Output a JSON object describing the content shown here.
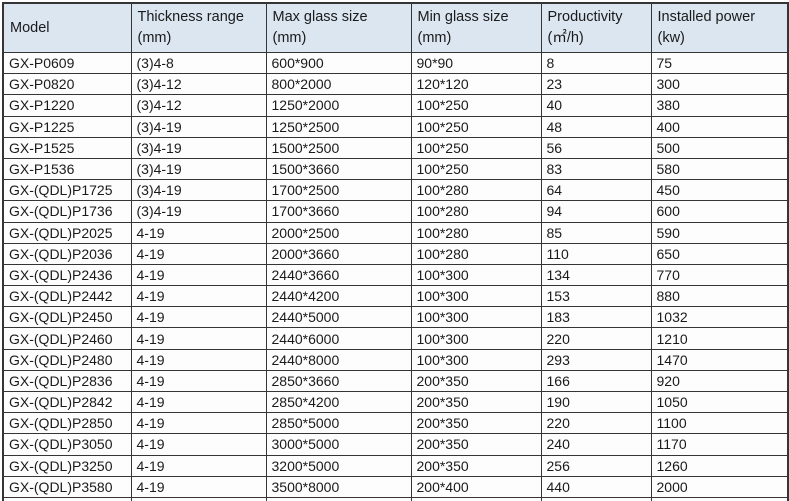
{
  "colors": {
    "header_bg": "#dce6f1",
    "row_bg": "#fdfdfe",
    "border": "#353535",
    "text": "#1a1a1a"
  },
  "table": {
    "headers": [
      {
        "line1": "Model",
        "line2": ""
      },
      {
        "line1": "Thickness range",
        "line2": "(mm)"
      },
      {
        "line1": "Max glass size",
        "line2": "(mm)"
      },
      {
        "line1": "Min glass size",
        "line2": "(mm)"
      },
      {
        "line1": "Productivity",
        "line2": "(㎡/h)"
      },
      {
        "line1": "Installed power",
        "line2": "(kw)"
      }
    ],
    "column_names": [
      "model",
      "thickness-range",
      "max-glass-size",
      "min-glass-size",
      "productivity",
      "installed-power"
    ],
    "rows": [
      [
        "GX-P0609",
        "(3)4-8",
        "600*900",
        "90*90",
        "8",
        "75"
      ],
      [
        "GX-P0820",
        "(3)4-12",
        "800*2000",
        "120*120",
        "23",
        "300"
      ],
      [
        "GX-P1220",
        "(3)4-12",
        "1250*2000",
        "100*250",
        "40",
        "380"
      ],
      [
        "GX-P1225",
        "(3)4-19",
        "1250*2500",
        "100*250",
        "48",
        "400"
      ],
      [
        "GX-P1525",
        "(3)4-19",
        "1500*2500",
        "100*250",
        "56",
        "500"
      ],
      [
        "GX-P1536",
        "(3)4-19",
        "1500*3660",
        "100*250",
        "83",
        "580"
      ],
      [
        "GX-(QDL)P1725",
        "(3)4-19",
        "1700*2500",
        "100*280",
        "64",
        "450"
      ],
      [
        "GX-(QDL)P1736",
        "(3)4-19",
        "1700*3660",
        "100*280",
        "94",
        "600"
      ],
      [
        "GX-(QDL)P2025",
        "4-19",
        "2000*2500",
        "100*280",
        "85",
        "590"
      ],
      [
        "GX-(QDL)P2036",
        "4-19",
        "2000*3660",
        "100*280",
        "110",
        "650"
      ],
      [
        "GX-(QDL)P2436",
        "4-19",
        "2440*3660",
        "100*300",
        "134",
        "770"
      ],
      [
        "GX-(QDL)P2442",
        "4-19",
        "2440*4200",
        "100*300",
        "153",
        "880"
      ],
      [
        "GX-(QDL)P2450",
        "4-19",
        "2440*5000",
        "100*300",
        "183",
        "1032"
      ],
      [
        "GX-(QDL)P2460",
        "4-19",
        "2440*6000",
        "100*300",
        "220",
        "1210"
      ],
      [
        "GX-(QDL)P2480",
        "4-19",
        "2440*8000",
        "100*300",
        "293",
        "1470"
      ],
      [
        "GX-(QDL)P2836",
        "4-19",
        "2850*3660",
        "200*350",
        "166",
        "920"
      ],
      [
        "GX-(QDL)P2842",
        "4-19",
        "2850*4200",
        "200*350",
        "190",
        "1050"
      ],
      [
        "GX-(QDL)P2850",
        "4-19",
        "2850*5000",
        "200*350",
        "220",
        "1100"
      ],
      [
        "GX-(QDL)P3050",
        "4-19",
        "3000*5000",
        "200*350",
        "240",
        "1170"
      ],
      [
        "GX-(QDL)P3250",
        "4-19",
        "3200*5000",
        "200*350",
        "256",
        "1260"
      ],
      [
        "GX-(QDL)P3580",
        "4-19",
        "3500*8000",
        "200*400",
        "440",
        "2000"
      ]
    ]
  }
}
